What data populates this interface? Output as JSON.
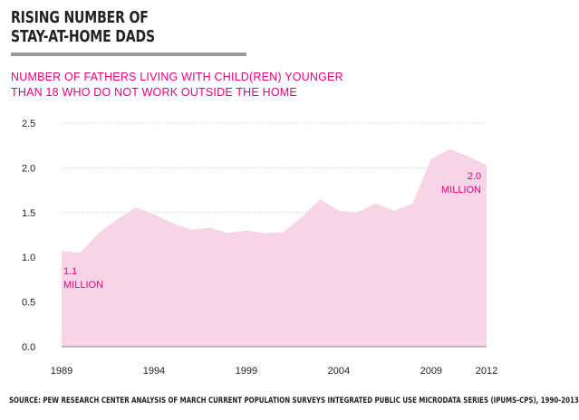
{
  "title": {
    "line1": "RISING NUMBER OF",
    "line2": "STAY-AT-HOME DADS"
  },
  "subtitle": {
    "line1": "NUMBER OF FATHERS LIVING WITH CHILD(REN) YOUNGER",
    "line2": "THAN 18 WHO DO NOT WORK OUTSIDE THE HOME"
  },
  "colors": {
    "accent": "#e6007e",
    "area_fill": "#f7d4e6",
    "rule": "#9a9a9a",
    "text": "#222222"
  },
  "chart_data": {
    "type": "area",
    "x": [
      1989,
      1990,
      1991,
      1992,
      1993,
      1994,
      1995,
      1996,
      1997,
      1998,
      1999,
      2000,
      2001,
      2002,
      2003,
      2004,
      2005,
      2006,
      2007,
      2008,
      2009,
      2010,
      2011,
      2012
    ],
    "series": [
      {
        "values": [
          1.07,
          1.05,
          1.27,
          1.42,
          1.56,
          1.48,
          1.38,
          1.31,
          1.33,
          1.27,
          1.3,
          1.27,
          1.28,
          1.45,
          1.65,
          1.52,
          1.5,
          1.6,
          1.52,
          1.6,
          2.1,
          2.21,
          2.13,
          2.03
        ]
      }
    ],
    "y_ticks": [
      "0.0",
      "0.5",
      "1.0",
      "1.5",
      "2.0",
      "2.5"
    ],
    "x_ticks": [
      "1989",
      "1994",
      "1999",
      "2004",
      "2009",
      "2012"
    ],
    "ylim": [
      0,
      2.5
    ],
    "xlim": [
      1989,
      2012
    ],
    "grid": true,
    "annotations": [
      {
        "line1": "1.1",
        "line2": "MILLION",
        "x": 1989
      },
      {
        "line1": "2.0",
        "line2": "MILLION",
        "x": 2012
      }
    ]
  },
  "source": "SOURCE: PEW RESEARCH CENTER ANALYSIS OF MARCH CURRENT POPULATION SURVEYS INTEGRATED PUBLIC USE MICRODATA SERIES (IPUMS-CPS), 1990-2013"
}
